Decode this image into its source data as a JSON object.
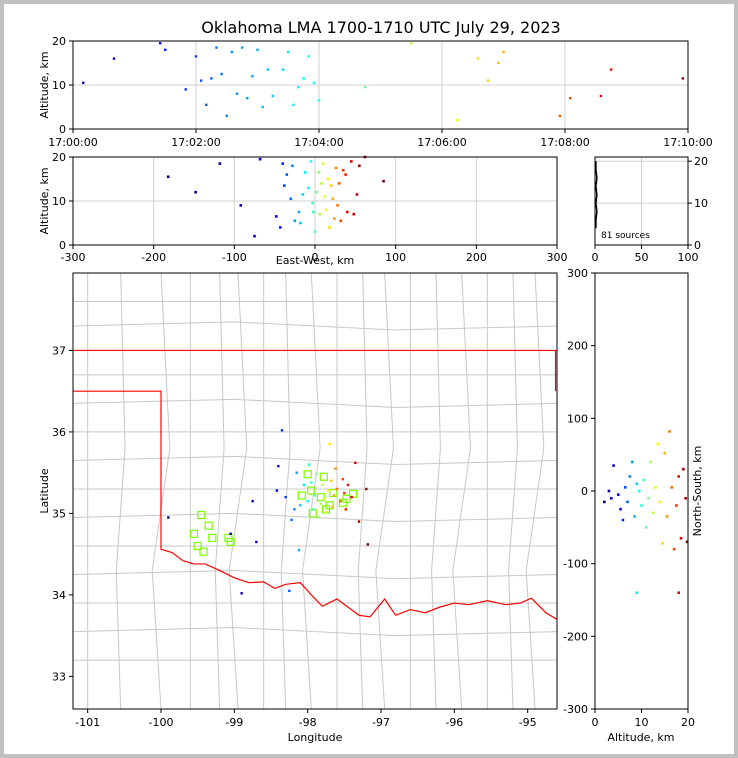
{
  "title": "Oklahoma LMA 1700-1710 UTC July 29, 2023",
  "sources_label": "81 sources",
  "colors": {
    "lma_station": "#7cfc00",
    "state_border": "#ff0000",
    "county_lines": "#c8c8c8"
  },
  "chart_data": [
    {
      "id": "time-height",
      "type": "scatter",
      "xlabel": "",
      "ylabel": "Altitude, km",
      "xlim": [
        "17:00:00",
        "17:10:00"
      ],
      "ylim": [
        0,
        20
      ],
      "x_ticks": [
        "17:00:00",
        "17:02:00",
        "17:04:00",
        "17:06:00",
        "17:08:00",
        "17:10:00"
      ],
      "y_ticks": [
        0,
        10,
        20
      ],
      "grid": true,
      "color_by": "time",
      "points": [
        {
          "t": "17:00:10",
          "alt": 10.5
        },
        {
          "t": "17:00:40",
          "alt": 16.0
        },
        {
          "t": "17:01:25",
          "alt": 19.5
        },
        {
          "t": "17:01:30",
          "alt": 18.0
        },
        {
          "t": "17:01:50",
          "alt": 9.0
        },
        {
          "t": "17:02:00",
          "alt": 16.5
        },
        {
          "t": "17:02:05",
          "alt": 11.0
        },
        {
          "t": "17:02:10",
          "alt": 5.5
        },
        {
          "t": "17:02:15",
          "alt": 11.5
        },
        {
          "t": "17:02:20",
          "alt": 18.5
        },
        {
          "t": "17:02:25",
          "alt": 12.5
        },
        {
          "t": "17:02:30",
          "alt": 3.0
        },
        {
          "t": "17:02:35",
          "alt": 17.5
        },
        {
          "t": "17:02:40",
          "alt": 8.0
        },
        {
          "t": "17:02:45",
          "alt": 18.5
        },
        {
          "t": "17:02:50",
          "alt": 7.0
        },
        {
          "t": "17:02:55",
          "alt": 12.0
        },
        {
          "t": "17:03:00",
          "alt": 18.0
        },
        {
          "t": "17:03:05",
          "alt": 5.0
        },
        {
          "t": "17:03:10",
          "alt": 13.5
        },
        {
          "t": "17:03:15",
          "alt": 7.5
        },
        {
          "t": "17:03:25",
          "alt": 13.5
        },
        {
          "t": "17:03:30",
          "alt": 17.5
        },
        {
          "t": "17:03:35",
          "alt": 5.5
        },
        {
          "t": "17:03:40",
          "alt": 9.5
        },
        {
          "t": "17:03:45",
          "alt": 11.5
        },
        {
          "t": "17:03:50",
          "alt": 16.5
        },
        {
          "t": "17:03:55",
          "alt": 10.5
        },
        {
          "t": "17:04:00",
          "alt": 6.5
        },
        {
          "t": "17:04:45",
          "alt": 9.5
        },
        {
          "t": "17:05:30",
          "alt": 19.5
        },
        {
          "t": "17:06:15",
          "alt": 2.0
        },
        {
          "t": "17:06:35",
          "alt": 16.0
        },
        {
          "t": "17:06:45",
          "alt": 11.0
        },
        {
          "t": "17:06:55",
          "alt": 15.0
        },
        {
          "t": "17:07:00",
          "alt": 17.5
        },
        {
          "t": "17:07:55",
          "alt": 3.0
        },
        {
          "t": "17:08:05",
          "alt": 7.0
        },
        {
          "t": "17:08:35",
          "alt": 7.5
        },
        {
          "t": "17:08:45",
          "alt": 13.5
        },
        {
          "t": "17:09:55",
          "alt": 11.5
        }
      ]
    },
    {
      "id": "ew-height",
      "type": "scatter",
      "xlabel": "East-West, km",
      "ylabel": "Altitude, km",
      "xlim": [
        -300,
        300
      ],
      "ylim": [
        0,
        20
      ],
      "x_ticks": [
        -300,
        -200,
        -100,
        0,
        100,
        200,
        300
      ],
      "y_ticks": [
        0,
        10,
        20
      ],
      "grid": true,
      "points": [
        {
          "x": -182,
          "alt": 15.5
        },
        {
          "x": -148,
          "alt": 12.0
        },
        {
          "x": -118,
          "alt": 18.5
        },
        {
          "x": -92,
          "alt": 9.0
        },
        {
          "x": -75,
          "alt": 2.0
        },
        {
          "x": -68,
          "alt": 19.5
        },
        {
          "x": -48,
          "alt": 6.5
        },
        {
          "x": -43,
          "alt": 4.0
        },
        {
          "x": -40,
          "alt": 18.5
        },
        {
          "x": -38,
          "alt": 13.5
        },
        {
          "x": -35,
          "alt": 16.0
        },
        {
          "x": -30,
          "alt": 10.5
        },
        {
          "x": -28,
          "alt": 18.0
        },
        {
          "x": -25,
          "alt": 5.5
        },
        {
          "x": -20,
          "alt": 7.5
        },
        {
          "x": -18,
          "alt": 5.0
        },
        {
          "x": -15,
          "alt": 11.5
        },
        {
          "x": -12,
          "alt": 16.5
        },
        {
          "x": -8,
          "alt": 13.0
        },
        {
          "x": -5,
          "alt": 19.0
        },
        {
          "x": -3,
          "alt": 9.5
        },
        {
          "x": -2,
          "alt": 7.5
        },
        {
          "x": 0,
          "alt": 3.0
        },
        {
          "x": 2,
          "alt": 12.0
        },
        {
          "x": 5,
          "alt": 16.5
        },
        {
          "x": 6,
          "alt": 7.0
        },
        {
          "x": 8,
          "alt": 14.0
        },
        {
          "x": 10,
          "alt": 18.5
        },
        {
          "x": 12,
          "alt": 11.0
        },
        {
          "x": 14,
          "alt": 8.0
        },
        {
          "x": 16,
          "alt": 15.0
        },
        {
          "x": 18,
          "alt": 4.0
        },
        {
          "x": 20,
          "alt": 13.5
        },
        {
          "x": 22,
          "alt": 10.5
        },
        {
          "x": 24,
          "alt": 6.0
        },
        {
          "x": 26,
          "alt": 17.5
        },
        {
          "x": 28,
          "alt": 9.0
        },
        {
          "x": 30,
          "alt": 14.0
        },
        {
          "x": 32,
          "alt": 5.5
        },
        {
          "x": 35,
          "alt": 17.0
        },
        {
          "x": 38,
          "alt": 16.0
        },
        {
          "x": 40,
          "alt": 7.5
        },
        {
          "x": 45,
          "alt": 19.0
        },
        {
          "x": 48,
          "alt": 7.0
        },
        {
          "x": 52,
          "alt": 11.5
        },
        {
          "x": 55,
          "alt": 18.0
        },
        {
          "x": 62,
          "alt": 20.0
        },
        {
          "x": 85,
          "alt": 14.5
        }
      ]
    },
    {
      "id": "altitude-histogram",
      "type": "line",
      "xlabel": "",
      "ylabel": "",
      "xlim": [
        0,
        100
      ],
      "ylim": [
        0,
        21
      ],
      "x_ticks": [
        0,
        50,
        100
      ],
      "y_ticks": [
        0,
        10,
        20
      ],
      "grid": true,
      "annotation": "81 sources",
      "points": [
        {
          "count": 1,
          "alt": 4.0
        },
        {
          "count": 1,
          "alt": 6.0
        },
        {
          "count": 2,
          "alt": 8.0
        },
        {
          "count": 1,
          "alt": 10.0
        },
        {
          "count": 2,
          "alt": 12.0
        },
        {
          "count": 1,
          "alt": 14.0
        },
        {
          "count": 2,
          "alt": 16.0
        },
        {
          "count": 1,
          "alt": 18.0
        },
        {
          "count": 1,
          "alt": 20.0
        }
      ]
    },
    {
      "id": "plan-view",
      "type": "scatter",
      "xlabel": "Longitude",
      "ylabel": "Latitude",
      "xlim": [
        -101.2,
        -94.6
      ],
      "ylim": [
        32.6,
        37.95
      ],
      "x_ticks": [
        -101,
        -100,
        -99,
        -98,
        -97,
        -96,
        -95
      ],
      "y_ticks": [
        33,
        34,
        35,
        36,
        37
      ],
      "grid": false,
      "stations": [
        {
          "lon": -99.55,
          "lat": 34.75
        },
        {
          "lon": -99.45,
          "lat": 34.98
        },
        {
          "lon": -99.35,
          "lat": 34.85
        },
        {
          "lon": -99.3,
          "lat": 34.7
        },
        {
          "lon": -99.5,
          "lat": 34.6
        },
        {
          "lon": -99.42,
          "lat": 34.53
        },
        {
          "lon": -99.08,
          "lat": 34.7
        },
        {
          "lon": -99.05,
          "lat": 34.65
        },
        {
          "lon": -98.08,
          "lat": 35.22
        },
        {
          "lon": -98.0,
          "lat": 35.48
        },
        {
          "lon": -97.95,
          "lat": 35.28
        },
        {
          "lon": -97.93,
          "lat": 35.0
        },
        {
          "lon": -97.82,
          "lat": 35.2
        },
        {
          "lon": -97.78,
          "lat": 35.45
        },
        {
          "lon": -97.7,
          "lat": 35.1
        },
        {
          "lon": -97.65,
          "lat": 35.25
        },
        {
          "lon": -97.52,
          "lat": 35.13
        },
        {
          "lon": -97.47,
          "lat": 35.18
        },
        {
          "lon": -97.38,
          "lat": 35.24
        },
        {
          "lon": -97.75,
          "lat": 35.05
        }
      ],
      "points": [
        {
          "lon": -99.9,
          "lat": 34.95
        },
        {
          "lon": -99.05,
          "lat": 34.75
        },
        {
          "lon": -98.9,
          "lat": 34.02
        },
        {
          "lon": -98.75,
          "lat": 35.15
        },
        {
          "lon": -98.7,
          "lat": 34.65
        },
        {
          "lon": -98.42,
          "lat": 35.28
        },
        {
          "lon": -98.4,
          "lat": 35.58
        },
        {
          "lon": -98.35,
          "lat": 36.02
        },
        {
          "lon": -98.3,
          "lat": 35.2
        },
        {
          "lon": -98.25,
          "lat": 34.05
        },
        {
          "lon": -98.22,
          "lat": 34.92
        },
        {
          "lon": -98.18,
          "lat": 35.05
        },
        {
          "lon": -98.15,
          "lat": 35.5
        },
        {
          "lon": -98.12,
          "lat": 34.55
        },
        {
          "lon": -98.1,
          "lat": 35.1
        },
        {
          "lon": -98.05,
          "lat": 35.35
        },
        {
          "lon": -98.0,
          "lat": 35.15
        },
        {
          "lon": -97.98,
          "lat": 35.6
        },
        {
          "lon": -97.95,
          "lat": 35.38
        },
        {
          "lon": -97.92,
          "lat": 35.05
        },
        {
          "lon": -97.9,
          "lat": 35.22
        },
        {
          "lon": -97.88,
          "lat": 35.48
        },
        {
          "lon": -97.85,
          "lat": 34.95
        },
        {
          "lon": -97.82,
          "lat": 35.12
        },
        {
          "lon": -97.8,
          "lat": 35.35
        },
        {
          "lon": -97.78,
          "lat": 35.18
        },
        {
          "lon": -97.75,
          "lat": 35.02
        },
        {
          "lon": -97.72,
          "lat": 35.28
        },
        {
          "lon": -97.7,
          "lat": 35.85
        },
        {
          "lon": -97.68,
          "lat": 35.4
        },
        {
          "lon": -97.66,
          "lat": 35.08
        },
        {
          "lon": -97.64,
          "lat": 35.22
        },
        {
          "lon": -97.62,
          "lat": 35.55
        },
        {
          "lon": -97.6,
          "lat": 35.3
        },
        {
          "lon": -97.55,
          "lat": 35.15
        },
        {
          "lon": -97.52,
          "lat": 35.42
        },
        {
          "lon": -97.5,
          "lat": 35.25
        },
        {
          "lon": -97.48,
          "lat": 35.05
        },
        {
          "lon": -97.45,
          "lat": 35.35
        },
        {
          "lon": -97.4,
          "lat": 35.2
        },
        {
          "lon": -97.35,
          "lat": 35.62
        },
        {
          "lon": -97.3,
          "lat": 34.9
        },
        {
          "lon": -97.2,
          "lat": 35.3
        },
        {
          "lon": -97.18,
          "lat": 34.62
        }
      ]
    },
    {
      "id": "ns-height",
      "type": "scatter",
      "xlabel": "Altitude, km",
      "ylabel": "North-South, km",
      "xlim": [
        0,
        20
      ],
      "ylim": [
        -300,
        300
      ],
      "x_ticks": [
        0,
        10,
        20
      ],
      "y_ticks": [
        -300,
        -200,
        -100,
        0,
        100,
        200,
        300
      ],
      "grid": false,
      "points": [
        {
          "alt": 2.0,
          "ns": -15
        },
        {
          "alt": 3.0,
          "ns": 0
        },
        {
          "alt": 3.5,
          "ns": -10
        },
        {
          "alt": 4.0,
          "ns": 35
        },
        {
          "alt": 5.0,
          "ns": -5
        },
        {
          "alt": 5.5,
          "ns": -25
        },
        {
          "alt": 6.0,
          "ns": -40
        },
        {
          "alt": 6.5,
          "ns": 5
        },
        {
          "alt": 7.0,
          "ns": -15
        },
        {
          "alt": 7.5,
          "ns": 20
        },
        {
          "alt": 8.0,
          "ns": 40
        },
        {
          "alt": 8.5,
          "ns": -35
        },
        {
          "alt": 9.0,
          "ns": 10
        },
        {
          "alt": 9.0,
          "ns": -140
        },
        {
          "alt": 9.5,
          "ns": 0
        },
        {
          "alt": 10.0,
          "ns": -20
        },
        {
          "alt": 10.5,
          "ns": 15
        },
        {
          "alt": 11.0,
          "ns": -50
        },
        {
          "alt": 11.5,
          "ns": -10
        },
        {
          "alt": 12.0,
          "ns": 40
        },
        {
          "alt": 12.5,
          "ns": -30
        },
        {
          "alt": 13.0,
          "ns": 5
        },
        {
          "alt": 13.5,
          "ns": 65
        },
        {
          "alt": 14.0,
          "ns": -15
        },
        {
          "alt": 14.5,
          "ns": -72
        },
        {
          "alt": 15.0,
          "ns": 52
        },
        {
          "alt": 15.5,
          "ns": -35
        },
        {
          "alt": 16.0,
          "ns": 82
        },
        {
          "alt": 16.5,
          "ns": 5
        },
        {
          "alt": 17.0,
          "ns": -80
        },
        {
          "alt": 17.5,
          "ns": -20
        },
        {
          "alt": 18.0,
          "ns": 20
        },
        {
          "alt": 18.0,
          "ns": -140
        },
        {
          "alt": 18.5,
          "ns": -65
        },
        {
          "alt": 19.0,
          "ns": 30
        },
        {
          "alt": 19.5,
          "ns": -10
        },
        {
          "alt": 19.8,
          "ns": -70
        }
      ]
    }
  ]
}
